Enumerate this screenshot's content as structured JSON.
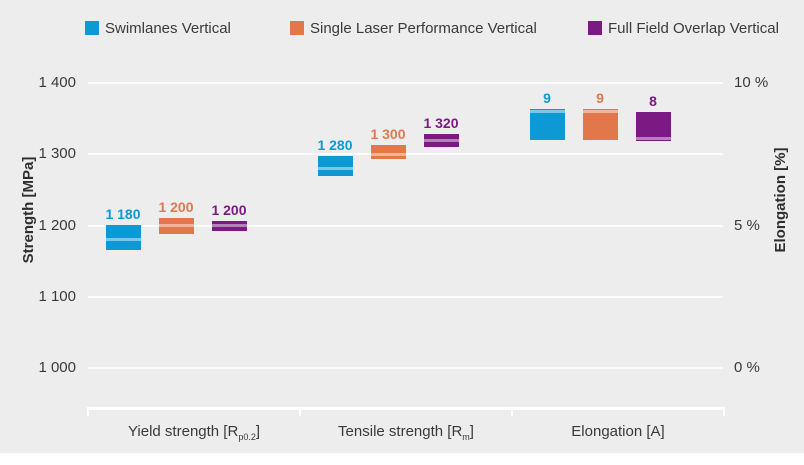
{
  "legend": {
    "items": [
      {
        "label": "Swimlanes Vertical",
        "color": "#0d99d4"
      },
      {
        "label": "Single Laser Performance Vertical",
        "color": "#e2774a"
      },
      {
        "label": "Full Field Overlap Vertical",
        "color": "#7a1a82"
      }
    ]
  },
  "chart_data": {
    "type": "floating-bar",
    "title": "",
    "left_axis": {
      "title": "Strength [MPa]",
      "min": 1000,
      "max": 1400,
      "ticks": [
        {
          "value": 1400,
          "label": "1 400"
        },
        {
          "value": 1300,
          "label": "1 300"
        },
        {
          "value": 1200,
          "label": "1 200"
        },
        {
          "value": 1100,
          "label": "1 100"
        },
        {
          "value": 1000,
          "label": "1 000"
        }
      ]
    },
    "right_axis": {
      "title": "Elongation [%]",
      "min": 0,
      "max": 10,
      "ticks": [
        {
          "value": 10,
          "label": "10 %"
        },
        {
          "value": 5,
          "label": "5 %"
        },
        {
          "value": 0,
          "label": "0 %"
        }
      ]
    },
    "x_axis": {
      "categories": [
        {
          "pre": "Yield strength [R",
          "sub": "p0.2",
          "post": "]"
        },
        {
          "pre": "Tensile strength [R",
          "sub": "m",
          "post": "]"
        },
        {
          "pre": "Elongation [A]",
          "sub": "",
          "post": ""
        }
      ]
    },
    "grid": true,
    "legend_position": "top",
    "series": [
      {
        "name": "Swimlanes Vertical",
        "color": "#0d99d4",
        "points": [
          {
            "label": "1 180",
            "mean": 1180,
            "low": 1165,
            "high": 1201,
            "unit": "MPa"
          },
          {
            "label": "1 280",
            "mean": 1280,
            "low": 1270,
            "high": 1297,
            "unit": "MPa"
          },
          {
            "label": "9",
            "mean": 9,
            "low": 8.0,
            "high": 9.1,
            "unit": "%"
          }
        ]
      },
      {
        "name": "Single Laser Performance Vertical",
        "color": "#e2774a",
        "points": [
          {
            "label": "1 200",
            "mean": 1200,
            "low": 1188,
            "high": 1210,
            "unit": "MPa"
          },
          {
            "label": "1 300",
            "mean": 1300,
            "low": 1294,
            "high": 1313,
            "unit": "MPa"
          },
          {
            "label": "9",
            "mean": 9,
            "low": 8.0,
            "high": 9.1,
            "unit": "%"
          }
        ]
      },
      {
        "name": "Full Field Overlap Vertical",
        "color": "#7a1a82",
        "points": [
          {
            "label": "1 200",
            "mean": 1200,
            "low": 1192,
            "high": 1207,
            "unit": "MPa"
          },
          {
            "label": "1 320",
            "mean": 1320,
            "low": 1310,
            "high": 1329,
            "unit": "MPa"
          },
          {
            "label": "8",
            "mean": 8,
            "low": 7.95,
            "high": 9.0,
            "unit": "%"
          }
        ]
      }
    ]
  }
}
